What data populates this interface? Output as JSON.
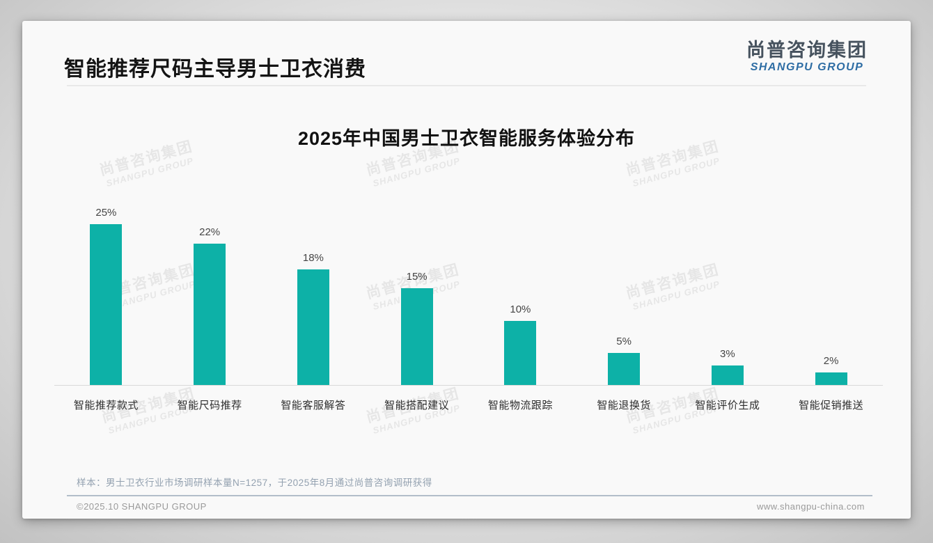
{
  "page": {
    "header": {
      "title": "智能推荐尺码主导男士卫衣消费"
    },
    "logo": {
      "cn": "尚普咨询集团",
      "en": "SHANGPU GROUP"
    },
    "watermark": {
      "cn": "尚普咨询集团",
      "en": "SHANGPU GROUP"
    },
    "note": "样本：男士卫衣行业市场调研样本量N=1257，于2025年8月通过尚普咨询调研获得",
    "footer": {
      "copyright": "©2025.10 SHANGPU GROUP",
      "website": "www.shangpu-china.com"
    }
  },
  "colors": {
    "bar": "#0db1a7",
    "logo_blue": "#2e6da4",
    "logo_dark": "#46525e"
  },
  "chart_data": {
    "type": "bar",
    "title": "2025年中国男士卫衣智能服务体验分布",
    "categories": [
      "智能推荐款式",
      "智能尺码推荐",
      "智能客服解答",
      "智能搭配建议",
      "智能物流跟踪",
      "智能退换货",
      "智能评价生成",
      "智能促销推送"
    ],
    "values": [
      25,
      22,
      18,
      15,
      10,
      5,
      3,
      2
    ],
    "value_labels": [
      "25%",
      "22%",
      "18%",
      "15%",
      "10%",
      "5%",
      "3%",
      "2%"
    ],
    "unit": "%",
    "xlabel": "",
    "ylabel": "",
    "ylim": [
      0,
      27
    ],
    "grid": false,
    "legend": "none",
    "bar_color": "#0db1a7"
  }
}
